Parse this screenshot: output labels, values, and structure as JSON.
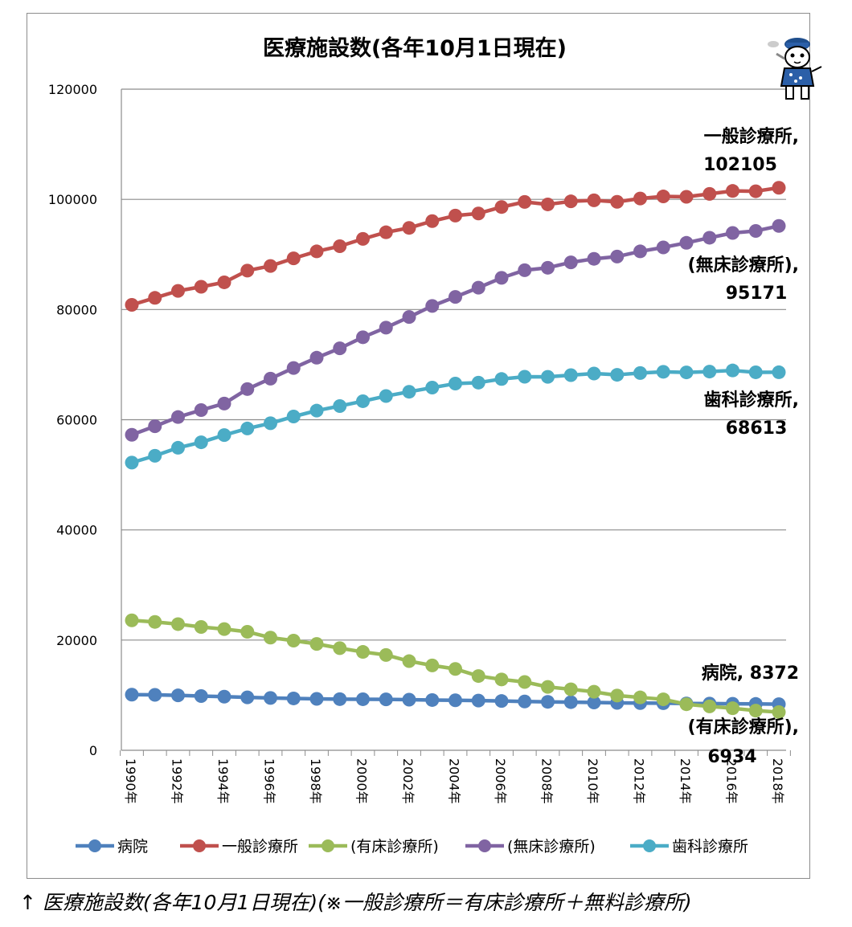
{
  "caption": "↑ 医療施設数(各年10月1日現在)(※一般診療所＝有床診療所＋無料診療所)",
  "mascot_icon": "cat-mascot-icon",
  "chart_data": {
    "type": "line",
    "title": "医療施設数(各年10月1日現在)",
    "xlabel": "",
    "ylabel": "",
    "ylim": [
      0,
      120000
    ],
    "yticks": [
      "0",
      "20000",
      "40000",
      "60000",
      "80000",
      "100000",
      "120000"
    ],
    "grid": true,
    "legend_position": "bottom",
    "x": [
      "1990年",
      "1991年",
      "1992年",
      "1993年",
      "1994年",
      "1995年",
      "1996年",
      "1997年",
      "1998年",
      "1999年",
      "2000年",
      "2001年",
      "2002年",
      "2003年",
      "2004年",
      "2005年",
      "2006年",
      "2007年",
      "2008年",
      "2009年",
      "2010年",
      "2011年",
      "2012年",
      "2013年",
      "2014年",
      "2015年",
      "2016年",
      "2017年",
      "2018年"
    ],
    "xtick_labels": [
      "1990年",
      "1992年",
      "1994年",
      "1996年",
      "1998年",
      "2000年",
      "2002年",
      "2004年",
      "2006年",
      "2008年",
      "2010年",
      "2012年",
      "2014年",
      "2016年",
      "2018年"
    ],
    "series": [
      {
        "name": "病院",
        "color": "#4f81bd",
        "values": [
          10096,
          10066,
          9963,
          9844,
          9731,
          9606,
          9490,
          9413,
          9333,
          9286,
          9266,
          9239,
          9187,
          9122,
          9077,
          9026,
          8943,
          8862,
          8794,
          8739,
          8670,
          8605,
          8565,
          8540,
          8493,
          8480,
          8442,
          8412,
          8372
        ]
      },
      {
        "name": "一般診療所",
        "color": "#c0504d",
        "values": [
          80852,
          82118,
          83384,
          84128,
          84940,
          87069,
          87909,
          89292,
          90556,
          91500,
          92824,
          94019,
          94819,
          96050,
          97051,
          97442,
          98609,
          99532,
          99083,
          99635,
          99824,
          99547,
          100152,
          100528,
          100461,
          100995,
          101529,
          101471,
          102105
        ]
      },
      {
        "name": "(有床診療所)",
        "color": "#9bbb59",
        "values": [
          23589,
          23300,
          22900,
          22383,
          22000,
          21504,
          20452,
          19900,
          19300,
          18539,
          17853,
          17300,
          16178,
          15400,
          14765,
          13477,
          12858,
          12399,
          11500,
          11072,
          10620,
          9934,
          9596,
          9249,
          8355,
          7961,
          7629,
          7202,
          6934
        ]
      },
      {
        "name": "(無床診療所)",
        "color": "#8064a2",
        "values": [
          57263,
          58818,
          60484,
          61745,
          62940,
          65565,
          67457,
          69392,
          71256,
          72961,
          74971,
          76719,
          78641,
          80650,
          82286,
          83965,
          85751,
          87133,
          87583,
          88563,
          89204,
          89613,
          90556,
          91279,
          92106,
          93034,
          93900,
          94269,
          95171
        ]
      },
      {
        "name": "歯科診療所",
        "color": "#4bacc6",
        "values": [
          52216,
          53453,
          54906,
          55906,
          57213,
          58407,
          59357,
          60579,
          61651,
          62484,
          63361,
          64297,
          65073,
          65828,
          66557,
          66732,
          67392,
          67798,
          67779,
          68097,
          68384,
          68156,
          68474,
          68701,
          68592,
          68737,
          68940,
          68609,
          68613
        ]
      }
    ],
    "annotations": [
      {
        "series": "一般診療所",
        "text": "一般診療所,",
        "value": "102105"
      },
      {
        "series": "(無床診療所)",
        "text": "(無床診療所),",
        "value": "95171"
      },
      {
        "series": "歯科診療所",
        "text": "歯科診療所,",
        "value": "68613"
      },
      {
        "series": "病院",
        "text": "病院,",
        "value": "8372"
      },
      {
        "series": "(有床診療所)",
        "text": "(有床診療所),",
        "value": "6934"
      }
    ]
  }
}
